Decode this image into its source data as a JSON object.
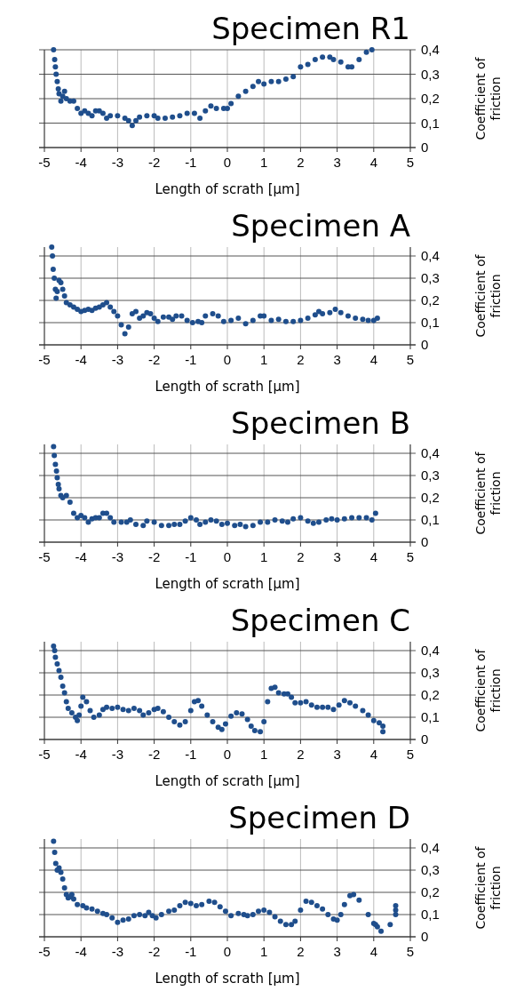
{
  "chart_data": [
    {
      "type": "scatter",
      "title": "Specimen R1",
      "xlabel": "Length of scrath [µm]",
      "ylabel": "Coefficient of friction",
      "xlim": [
        -5,
        5
      ],
      "xticks": [
        -5,
        -4,
        -3,
        -2,
        -1,
        0,
        1,
        2,
        3,
        4,
        5
      ],
      "ylim": [
        0,
        0.4
      ],
      "yticks": [
        {
          "value": 0,
          "label": "0"
        },
        {
          "value": 0.1,
          "label": "0,1"
        },
        {
          "value": 0.2,
          "label": "0,2"
        },
        {
          "value": 0.3,
          "label": "0,3"
        },
        {
          "value": 0.4,
          "label": "0,4"
        }
      ],
      "grid": true,
      "marker": "circle",
      "series": [
        {
          "color": "#1f4e8c",
          "x": [
            -4.75,
            -4.72,
            -4.7,
            -4.68,
            -4.65,
            -4.62,
            -4.6,
            -4.55,
            -4.5,
            -4.45,
            -4.4,
            -4.3,
            -4.2,
            -4.1,
            -4.0,
            -3.9,
            -3.8,
            -3.7,
            -3.6,
            -3.5,
            -3.4,
            -3.3,
            -3.2,
            -3.0,
            -2.8,
            -2.7,
            -2.6,
            -2.5,
            -2.4,
            -2.2,
            -2.0,
            -1.9,
            -1.7,
            -1.5,
            -1.3,
            -1.1,
            -0.9,
            -0.75,
            -0.6,
            -0.45,
            -0.3,
            -0.1,
            0.0,
            0.1,
            0.3,
            0.5,
            0.7,
            0.85,
            1.0,
            1.2,
            1.4,
            1.6,
            1.8,
            2.0,
            2.2,
            2.4,
            2.6,
            2.8,
            2.9,
            3.1,
            3.3,
            3.4,
            3.6,
            3.8,
            3.95
          ],
          "values": [
            0.4,
            0.36,
            0.33,
            0.3,
            0.27,
            0.24,
            0.22,
            0.19,
            0.21,
            0.23,
            0.2,
            0.19,
            0.19,
            0.16,
            0.14,
            0.15,
            0.14,
            0.13,
            0.15,
            0.15,
            0.14,
            0.12,
            0.13,
            0.13,
            0.12,
            0.11,
            0.09,
            0.11,
            0.125,
            0.13,
            0.13,
            0.12,
            0.12,
            0.125,
            0.13,
            0.14,
            0.14,
            0.12,
            0.15,
            0.17,
            0.16,
            0.16,
            0.16,
            0.18,
            0.21,
            0.23,
            0.25,
            0.27,
            0.26,
            0.27,
            0.27,
            0.28,
            0.29,
            0.33,
            0.34,
            0.36,
            0.37,
            0.37,
            0.36,
            0.35,
            0.33,
            0.33,
            0.36,
            0.39,
            0.4
          ]
        }
      ]
    },
    {
      "type": "scatter",
      "title": "Specimen A",
      "xlabel": "Length of scrath [µm]",
      "ylabel": "Coefficient of friction",
      "xlim": [
        -5,
        5
      ],
      "xticks": [
        -5,
        -4,
        -3,
        -2,
        -1,
        0,
        1,
        2,
        3,
        4,
        5
      ],
      "ylim": [
        0,
        0.44
      ],
      "yticks": [
        {
          "value": 0,
          "label": "0"
        },
        {
          "value": 0.1,
          "label": "0,1"
        },
        {
          "value": 0.2,
          "label": "0,2"
        },
        {
          "value": 0.3,
          "label": "0,3"
        },
        {
          "value": 0.4,
          "label": "0,4"
        }
      ],
      "grid": true,
      "marker": "circle",
      "series": [
        {
          "color": "#1f4e8c",
          "x": [
            -4.8,
            -4.78,
            -4.76,
            -4.73,
            -4.7,
            -4.68,
            -4.65,
            -4.6,
            -4.55,
            -4.5,
            -4.45,
            -4.4,
            -4.3,
            -4.2,
            -4.1,
            -4.0,
            -3.9,
            -3.8,
            -3.7,
            -3.6,
            -3.5,
            -3.4,
            -3.3,
            -3.2,
            -3.1,
            -3.0,
            -2.9,
            -2.8,
            -2.7,
            -2.6,
            -2.5,
            -2.4,
            -2.3,
            -2.2,
            -2.1,
            -2.0,
            -1.9,
            -1.75,
            -1.6,
            -1.5,
            -1.4,
            -1.25,
            -1.1,
            -0.95,
            -0.8,
            -0.7,
            -0.6,
            -0.4,
            -0.25,
            -0.1,
            0.1,
            0.3,
            0.5,
            0.7,
            0.9,
            1.0,
            1.2,
            1.4,
            1.6,
            1.8,
            2.0,
            2.2,
            2.4,
            2.5,
            2.6,
            2.8,
            2.95,
            3.1,
            3.3,
            3.5,
            3.7,
            3.85,
            4.0,
            4.1
          ],
          "values": [
            0.44,
            0.4,
            0.34,
            0.3,
            0.25,
            0.21,
            0.24,
            0.29,
            0.28,
            0.25,
            0.22,
            0.19,
            0.18,
            0.17,
            0.16,
            0.15,
            0.155,
            0.16,
            0.155,
            0.165,
            0.17,
            0.18,
            0.19,
            0.17,
            0.15,
            0.13,
            0.09,
            0.05,
            0.08,
            0.14,
            0.15,
            0.12,
            0.13,
            0.145,
            0.14,
            0.12,
            0.105,
            0.125,
            0.125,
            0.115,
            0.13,
            0.13,
            0.11,
            0.1,
            0.105,
            0.1,
            0.13,
            0.14,
            0.13,
            0.105,
            0.11,
            0.12,
            0.095,
            0.11,
            0.13,
            0.13,
            0.11,
            0.115,
            0.105,
            0.105,
            0.11,
            0.12,
            0.135,
            0.15,
            0.14,
            0.145,
            0.16,
            0.145,
            0.13,
            0.12,
            0.115,
            0.11,
            0.11,
            0.12
          ]
        }
      ]
    },
    {
      "type": "scatter",
      "title": "Specimen B",
      "xlabel": "Length of scrath [µm]",
      "ylabel": "Coefficient of friction",
      "xlim": [
        -5,
        5
      ],
      "xticks": [
        -5,
        -4,
        -3,
        -2,
        -1,
        0,
        1,
        2,
        3,
        4,
        5
      ],
      "ylim": [
        0,
        0.44
      ],
      "yticks": [
        {
          "value": 0,
          "label": "0"
        },
        {
          "value": 0.1,
          "label": "0,1"
        },
        {
          "value": 0.2,
          "label": "0,2"
        },
        {
          "value": 0.3,
          "label": "0,3"
        },
        {
          "value": 0.4,
          "label": "0,4"
        }
      ],
      "grid": true,
      "marker": "circle",
      "series": [
        {
          "color": "#1f4e8c",
          "x": [
            -4.75,
            -4.73,
            -4.7,
            -4.67,
            -4.65,
            -4.62,
            -4.6,
            -4.55,
            -4.5,
            -4.4,
            -4.3,
            -4.2,
            -4.1,
            -4.0,
            -3.9,
            -3.8,
            -3.7,
            -3.6,
            -3.5,
            -3.4,
            -3.3,
            -3.2,
            -3.1,
            -2.9,
            -2.75,
            -2.65,
            -2.5,
            -2.3,
            -2.2,
            -2.0,
            -1.8,
            -1.6,
            -1.45,
            -1.3,
            -1.15,
            -1.0,
            -0.85,
            -0.75,
            -0.6,
            -0.45,
            -0.3,
            -0.15,
            0.0,
            0.2,
            0.35,
            0.5,
            0.7,
            0.9,
            1.1,
            1.3,
            1.5,
            1.65,
            1.8,
            2.0,
            2.2,
            2.35,
            2.5,
            2.7,
            2.85,
            3.0,
            3.2,
            3.4,
            3.6,
            3.8,
            3.95,
            4.05
          ],
          "values": [
            0.43,
            0.39,
            0.35,
            0.32,
            0.29,
            0.26,
            0.24,
            0.21,
            0.2,
            0.21,
            0.18,
            0.13,
            0.11,
            0.12,
            0.11,
            0.09,
            0.105,
            0.11,
            0.11,
            0.13,
            0.13,
            0.11,
            0.09,
            0.09,
            0.09,
            0.1,
            0.08,
            0.075,
            0.095,
            0.09,
            0.075,
            0.075,
            0.08,
            0.08,
            0.095,
            0.11,
            0.1,
            0.08,
            0.09,
            0.1,
            0.095,
            0.08,
            0.085,
            0.075,
            0.08,
            0.07,
            0.075,
            0.09,
            0.09,
            0.1,
            0.095,
            0.09,
            0.105,
            0.11,
            0.095,
            0.085,
            0.09,
            0.1,
            0.105,
            0.1,
            0.105,
            0.11,
            0.11,
            0.11,
            0.1,
            0.13
          ]
        }
      ]
    },
    {
      "type": "scatter",
      "title": "Specimen C",
      "xlabel": "Length of scrath [µm]",
      "ylabel": "Coefficient of friction",
      "xlim": [
        -5,
        5
      ],
      "xticks": [
        -5,
        -4,
        -3,
        -2,
        -1,
        0,
        1,
        2,
        3,
        4,
        5
      ],
      "ylim": [
        0,
        0.44
      ],
      "yticks": [
        {
          "value": 0,
          "label": "0"
        },
        {
          "value": 0.1,
          "label": "0,1"
        },
        {
          "value": 0.2,
          "label": "0,2"
        },
        {
          "value": 0.3,
          "label": "0,3"
        },
        {
          "value": 0.4,
          "label": "0,4"
        }
      ],
      "grid": true,
      "marker": "circle",
      "series": [
        {
          "color": "#1f4e8c",
          "x": [
            -4.75,
            -4.72,
            -4.7,
            -4.65,
            -4.6,
            -4.55,
            -4.5,
            -4.45,
            -4.4,
            -4.35,
            -4.25,
            -4.15,
            -4.1,
            -4.05,
            -4.0,
            -3.95,
            -3.85,
            -3.75,
            -3.65,
            -3.5,
            -3.4,
            -3.3,
            -3.15,
            -3.0,
            -2.85,
            -2.7,
            -2.55,
            -2.4,
            -2.3,
            -2.15,
            -2.0,
            -1.9,
            -1.75,
            -1.6,
            -1.45,
            -1.3,
            -1.15,
            -1.0,
            -0.9,
            -0.8,
            -0.7,
            -0.55,
            -0.4,
            -0.25,
            -0.15,
            -0.05,
            0.1,
            0.25,
            0.4,
            0.55,
            0.65,
            0.75,
            0.9,
            1.0,
            1.1,
            1.2,
            1.3,
            1.4,
            1.55,
            1.65,
            1.75,
            1.85,
            2.0,
            2.15,
            2.3,
            2.45,
            2.6,
            2.75,
            2.9,
            3.05,
            3.2,
            3.35,
            3.5,
            3.7,
            3.85,
            4.0,
            4.15,
            4.25,
            4.25
          ],
          "values": [
            0.42,
            0.4,
            0.37,
            0.34,
            0.31,
            0.28,
            0.24,
            0.21,
            0.17,
            0.14,
            0.12,
            0.1,
            0.085,
            0.11,
            0.15,
            0.19,
            0.17,
            0.13,
            0.1,
            0.11,
            0.135,
            0.145,
            0.14,
            0.145,
            0.135,
            0.13,
            0.14,
            0.13,
            0.11,
            0.12,
            0.135,
            0.14,
            0.125,
            0.1,
            0.08,
            0.065,
            0.08,
            0.13,
            0.17,
            0.175,
            0.15,
            0.11,
            0.08,
            0.055,
            0.045,
            0.07,
            0.105,
            0.12,
            0.115,
            0.09,
            0.06,
            0.04,
            0.035,
            0.08,
            0.17,
            0.23,
            0.235,
            0.21,
            0.205,
            0.205,
            0.19,
            0.165,
            0.165,
            0.17,
            0.155,
            0.145,
            0.145,
            0.145,
            0.135,
            0.155,
            0.175,
            0.165,
            0.15,
            0.13,
            0.11,
            0.085,
            0.075,
            0.06,
            0.035
          ]
        }
      ]
    },
    {
      "type": "scatter",
      "title": "Specimen D",
      "xlabel": "Length of scrath [µm]",
      "ylabel": "Coefficient of friction",
      "xlim": [
        -5,
        5
      ],
      "xticks": [
        -5,
        -4,
        -3,
        -2,
        -1,
        0,
        1,
        2,
        3,
        4,
        5
      ],
      "ylim": [
        0,
        0.44
      ],
      "yticks": [
        {
          "value": 0,
          "label": "0"
        },
        {
          "value": 0.1,
          "label": "0,1"
        },
        {
          "value": 0.2,
          "label": "0,2"
        },
        {
          "value": 0.3,
          "label": "0,3"
        },
        {
          "value": 0.4,
          "label": "0,4"
        }
      ],
      "grid": true,
      "marker": "circle",
      "series": [
        {
          "color": "#1f4e8c",
          "x": [
            -4.75,
            -4.72,
            -4.69,
            -4.65,
            -4.6,
            -4.55,
            -4.5,
            -4.45,
            -4.4,
            -4.35,
            -4.3,
            -4.25,
            -4.2,
            -4.1,
            -3.95,
            -3.85,
            -3.7,
            -3.55,
            -3.4,
            -3.3,
            -3.15,
            -3.0,
            -2.85,
            -2.7,
            -2.55,
            -2.4,
            -2.25,
            -2.15,
            -2.05,
            -1.95,
            -1.8,
            -1.6,
            -1.45,
            -1.3,
            -1.15,
            -1.0,
            -0.85,
            -0.7,
            -0.5,
            -0.35,
            -0.2,
            -0.05,
            0.1,
            0.3,
            0.45,
            0.55,
            0.7,
            0.85,
            1.0,
            1.15,
            1.3,
            1.45,
            1.6,
            1.75,
            1.85,
            2.0,
            2.15,
            2.3,
            2.45,
            2.6,
            2.75,
            2.9,
            3.0,
            3.1,
            3.2,
            3.35,
            3.45,
            3.6,
            3.85,
            4.0,
            4.05,
            4.1,
            4.2,
            4.45,
            4.6,
            4.6,
            4.6
          ],
          "values": [
            0.43,
            0.38,
            0.33,
            0.3,
            0.31,
            0.29,
            0.26,
            0.22,
            0.19,
            0.175,
            0.18,
            0.19,
            0.17,
            0.145,
            0.14,
            0.13,
            0.125,
            0.115,
            0.105,
            0.1,
            0.085,
            0.065,
            0.075,
            0.08,
            0.095,
            0.1,
            0.095,
            0.11,
            0.095,
            0.085,
            0.1,
            0.115,
            0.12,
            0.14,
            0.155,
            0.15,
            0.14,
            0.145,
            0.16,
            0.155,
            0.135,
            0.115,
            0.095,
            0.105,
            0.1,
            0.095,
            0.1,
            0.115,
            0.12,
            0.11,
            0.09,
            0.07,
            0.055,
            0.055,
            0.07,
            0.12,
            0.16,
            0.155,
            0.14,
            0.125,
            0.1,
            0.08,
            0.075,
            0.1,
            0.145,
            0.185,
            0.19,
            0.165,
            0.1,
            0.06,
            0.055,
            0.045,
            0.025,
            0.055,
            0.1,
            0.12,
            0.14
          ]
        }
      ]
    }
  ]
}
